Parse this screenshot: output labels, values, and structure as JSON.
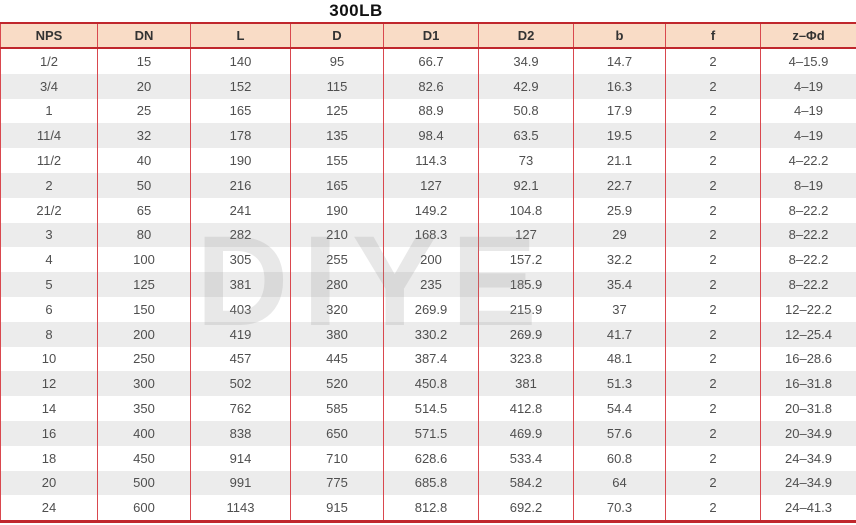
{
  "title": "300LB",
  "watermark": "DIYE",
  "colors": {
    "header_bg": "#f9dcc6",
    "grid_red": "#d9484e",
    "rule_dark_red": "#c0272d",
    "stripe_gray": "#ececec",
    "cell_text": "#4f4f4f"
  },
  "table": {
    "columns": [
      "NPS",
      "DN",
      "L",
      "D",
      "D1",
      "D2",
      "b",
      "f",
      "z–Φd"
    ],
    "rows": [
      [
        "1/2",
        "15",
        "140",
        "95",
        "66.7",
        "34.9",
        "14.7",
        "2",
        "4–15.9"
      ],
      [
        "3/4",
        "20",
        "152",
        "115",
        "82.6",
        "42.9",
        "16.3",
        "2",
        "4–19"
      ],
      [
        "1",
        "25",
        "165",
        "125",
        "88.9",
        "50.8",
        "17.9",
        "2",
        "4–19"
      ],
      [
        "11/4",
        "32",
        "178",
        "135",
        "98.4",
        "63.5",
        "19.5",
        "2",
        "4–19"
      ],
      [
        "11/2",
        "40",
        "190",
        "155",
        "114.3",
        "73",
        "21.1",
        "2",
        "4–22.2"
      ],
      [
        "2",
        "50",
        "216",
        "165",
        "127",
        "92.1",
        "22.7",
        "2",
        "8–19"
      ],
      [
        "21/2",
        "65",
        "241",
        "190",
        "149.2",
        "104.8",
        "25.9",
        "2",
        "8–22.2"
      ],
      [
        "3",
        "80",
        "282",
        "210",
        "168.3",
        "127",
        "29",
        "2",
        "8–22.2"
      ],
      [
        "4",
        "100",
        "305",
        "255",
        "200",
        "157.2",
        "32.2",
        "2",
        "8–22.2"
      ],
      [
        "5",
        "125",
        "381",
        "280",
        "235",
        "185.9",
        "35.4",
        "2",
        "8–22.2"
      ],
      [
        "6",
        "150",
        "403",
        "320",
        "269.9",
        "215.9",
        "37",
        "2",
        "12–22.2"
      ],
      [
        "8",
        "200",
        "419",
        "380",
        "330.2",
        "269.9",
        "41.7",
        "2",
        "12–25.4"
      ],
      [
        "10",
        "250",
        "457",
        "445",
        "387.4",
        "323.8",
        "48.1",
        "2",
        "16–28.6"
      ],
      [
        "12",
        "300",
        "502",
        "520",
        "450.8",
        "381",
        "51.3",
        "2",
        "16–31.8"
      ],
      [
        "14",
        "350",
        "762",
        "585",
        "514.5",
        "412.8",
        "54.4",
        "2",
        "20–31.8"
      ],
      [
        "16",
        "400",
        "838",
        "650",
        "571.5",
        "469.9",
        "57.6",
        "2",
        "20–34.9"
      ],
      [
        "18",
        "450",
        "914",
        "710",
        "628.6",
        "533.4",
        "60.8",
        "2",
        "24–34.9"
      ],
      [
        "20",
        "500",
        "991",
        "775",
        "685.8",
        "584.2",
        "64",
        "2",
        "24–34.9"
      ],
      [
        "24",
        "600",
        "1143",
        "915",
        "812.8",
        "692.2",
        "70.3",
        "2",
        "24–41.3"
      ]
    ]
  }
}
